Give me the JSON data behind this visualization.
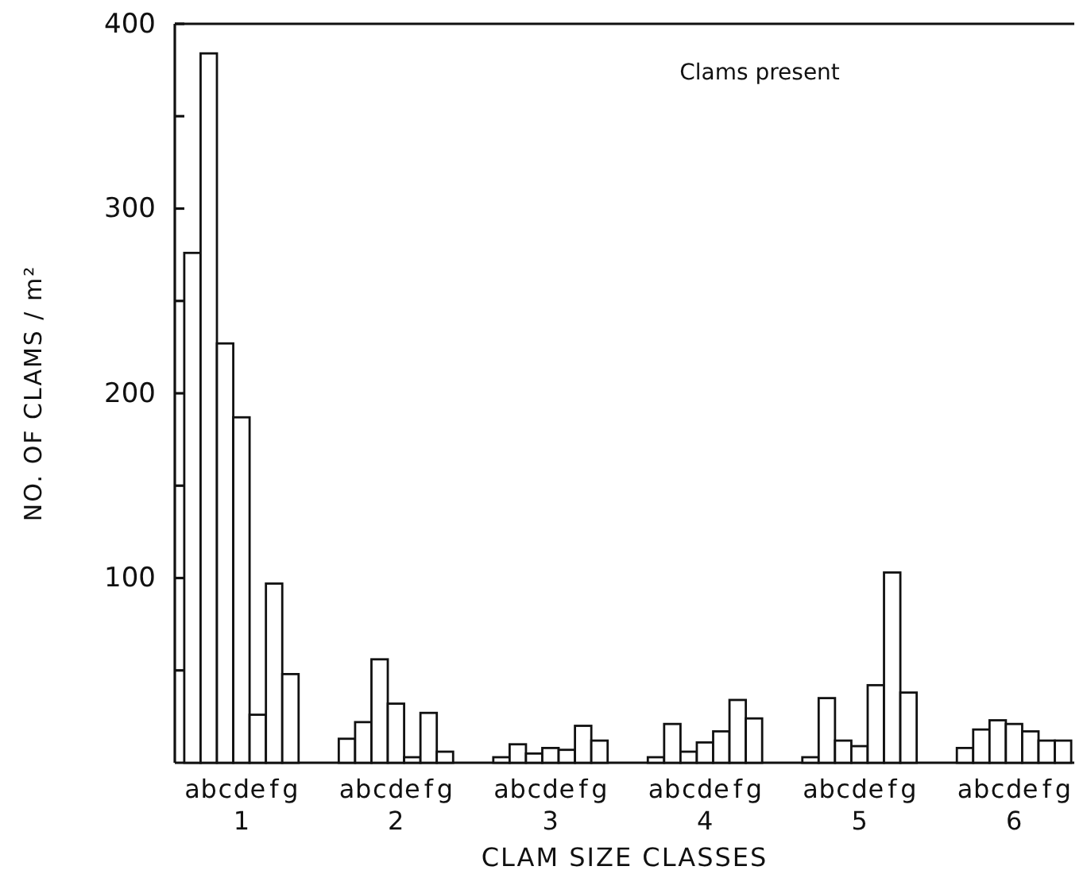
{
  "chart_data": {
    "type": "bar",
    "xlabel": "CLAM SIZE CLASSES",
    "ylabel": "NO. OF CLAMS / m²",
    "annotations": [
      "Clams present"
    ],
    "categories": [
      "1",
      "2",
      "3",
      "4",
      "5",
      "6"
    ],
    "series": [
      {
        "name": "a",
        "color": "#ffffff",
        "values": [
          276,
          13,
          3,
          3,
          3,
          8
        ]
      },
      {
        "name": "b",
        "color": "#ffffff",
        "values": [
          384,
          22,
          10,
          21,
          35,
          18
        ]
      },
      {
        "name": "c",
        "color": "#ffffff",
        "values": [
          227,
          56,
          5,
          6,
          12,
          23
        ]
      },
      {
        "name": "d",
        "color": "#ffffff",
        "values": [
          187,
          32,
          8,
          11,
          9,
          21
        ]
      },
      {
        "name": "e",
        "color": "#ffffff",
        "values": [
          26,
          3,
          7,
          17,
          42,
          17
        ]
      },
      {
        "name": "f",
        "color": "#ffffff",
        "values": [
          97,
          27,
          20,
          34,
          103,
          12
        ]
      },
      {
        "name": "g",
        "color": "#ffffff",
        "values": [
          48,
          6,
          12,
          24,
          38,
          12
        ]
      }
    ],
    "ylim": [
      0,
      400
    ],
    "yticks": [
      {
        "value": 50,
        "label": null
      },
      100,
      {
        "value": 150,
        "label": null
      },
      200,
      {
        "value": 250,
        "label": null
      },
      300,
      {
        "value": 350,
        "label": null
      },
      400
    ],
    "grid": false
  }
}
